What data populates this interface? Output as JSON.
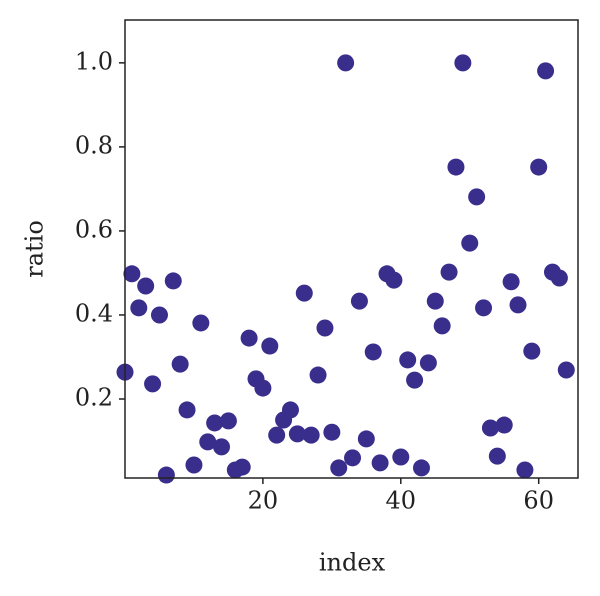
{
  "chart_data": {
    "type": "scatter",
    "xlabel": "index",
    "ylabel": "ratio",
    "color": "#392e8c",
    "x": [
      0,
      1,
      2,
      3,
      4,
      5,
      6,
      7,
      8,
      9,
      10,
      11,
      12,
      13,
      14,
      15,
      16,
      17,
      18,
      19,
      20,
      21,
      22,
      23,
      24,
      25,
      26,
      27,
      28,
      29,
      30,
      31,
      32,
      33,
      34,
      35,
      36,
      37,
      38,
      39,
      40,
      41,
      42,
      43,
      44,
      45,
      46,
      47,
      48,
      49,
      50,
      51,
      52,
      53,
      54,
      55,
      56,
      57,
      58,
      59,
      60,
      61,
      62,
      63,
      64
    ],
    "values": [
      0.264,
      0.498,
      0.417,
      0.469,
      0.236,
      0.4,
      0.019,
      0.481,
      0.283,
      0.174,
      0.043,
      0.381,
      0.098,
      0.143,
      0.086,
      0.148,
      0.031,
      0.038,
      0.345,
      0.248,
      0.226,
      0.326,
      0.114,
      0.15,
      0.174,
      0.117,
      0.452,
      0.114,
      0.257,
      0.369,
      0.121,
      0.036,
      1.0,
      0.06,
      0.433,
      0.105,
      0.312,
      0.048,
      0.498,
      0.483,
      0.062,
      0.293,
      0.245,
      0.036,
      0.286,
      0.433,
      0.374,
      0.502,
      0.752,
      1.0,
      0.571,
      0.681,
      0.417,
      0.131,
      0.064,
      0.138,
      0.479,
      0.424,
      0.031,
      0.314,
      0.752,
      0.981,
      0.502,
      0.488,
      0.269
    ],
    "xlim": [
      0,
      65.7
    ],
    "ylim": [
      0.012,
      1.102
    ],
    "xticks": [
      20,
      40,
      60
    ],
    "yticks": [
      0.2,
      0.4,
      0.6,
      0.8,
      {
        "value": 1,
        "label": "1.0"
      }
    ]
  }
}
